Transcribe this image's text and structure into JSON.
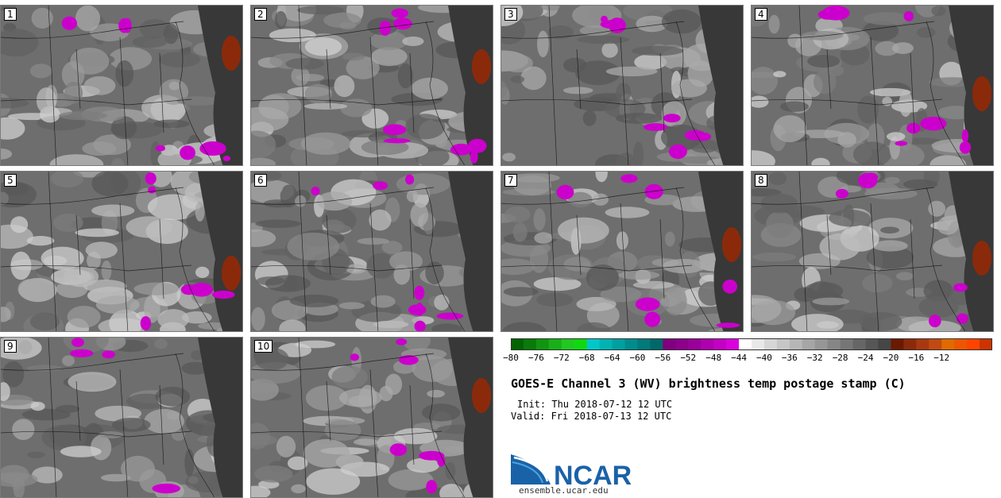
{
  "panels": [
    {
      "label": "1"
    },
    {
      "label": "2"
    },
    {
      "label": "3"
    },
    {
      "label": "4"
    },
    {
      "label": "5"
    },
    {
      "label": "6"
    },
    {
      "label": "7"
    },
    {
      "label": "8"
    },
    {
      "label": "9"
    },
    {
      "label": "10"
    }
  ],
  "chart_data": {
    "type": "heatmap",
    "title": "GOES-E Channel 3 (WV) brightness temp postage stamp (C)",
    "init": "Init: Thu 2018-07-12 12 UTC",
    "valid": "Valid: Fri 2018-07-13 12 UTC",
    "colorbar": {
      "min": -80,
      "max": -10,
      "step": 2,
      "tick_labels": [
        "-80",
        "-76",
        "-72",
        "-68",
        "-64",
        "-60",
        "-56",
        "-52",
        "-48",
        "-44",
        "-40",
        "-36",
        "-32",
        "-28",
        "-24",
        "-20",
        "-16",
        "-12"
      ],
      "colors": [
        "#006400",
        "#0a7a0a",
        "#119511",
        "#18b018",
        "#20c820",
        "#10d810",
        "#00c8c8",
        "#00b4b4",
        "#00a0a0",
        "#008c8c",
        "#007a7a",
        "#006868",
        "#800080",
        "#8c008c",
        "#9a009a",
        "#b000b0",
        "#c400c4",
        "#dc00dc",
        "#ffffff",
        "#e8e8e8",
        "#d6d6d6",
        "#c6c6c6",
        "#b6b6b6",
        "#a6a6a6",
        "#969696",
        "#868686",
        "#767676",
        "#666666",
        "#565656",
        "#464646",
        "#6b1a00",
        "#8b2a0a",
        "#a83810",
        "#c04a10",
        "#e06a00",
        "#ee5500",
        "#ff4400",
        "#cc3300"
      ]
    },
    "ensemble_members": 10
  },
  "branding": {
    "logo_text": "NCAR",
    "site": "ensemble.ucar.edu"
  },
  "colors": {
    "ncar_blue": "#1a62a8",
    "ncar_light": "#4aa6dc",
    "dry_brown": "#8b2a0a",
    "moist_magenta": "#cc00cc"
  }
}
